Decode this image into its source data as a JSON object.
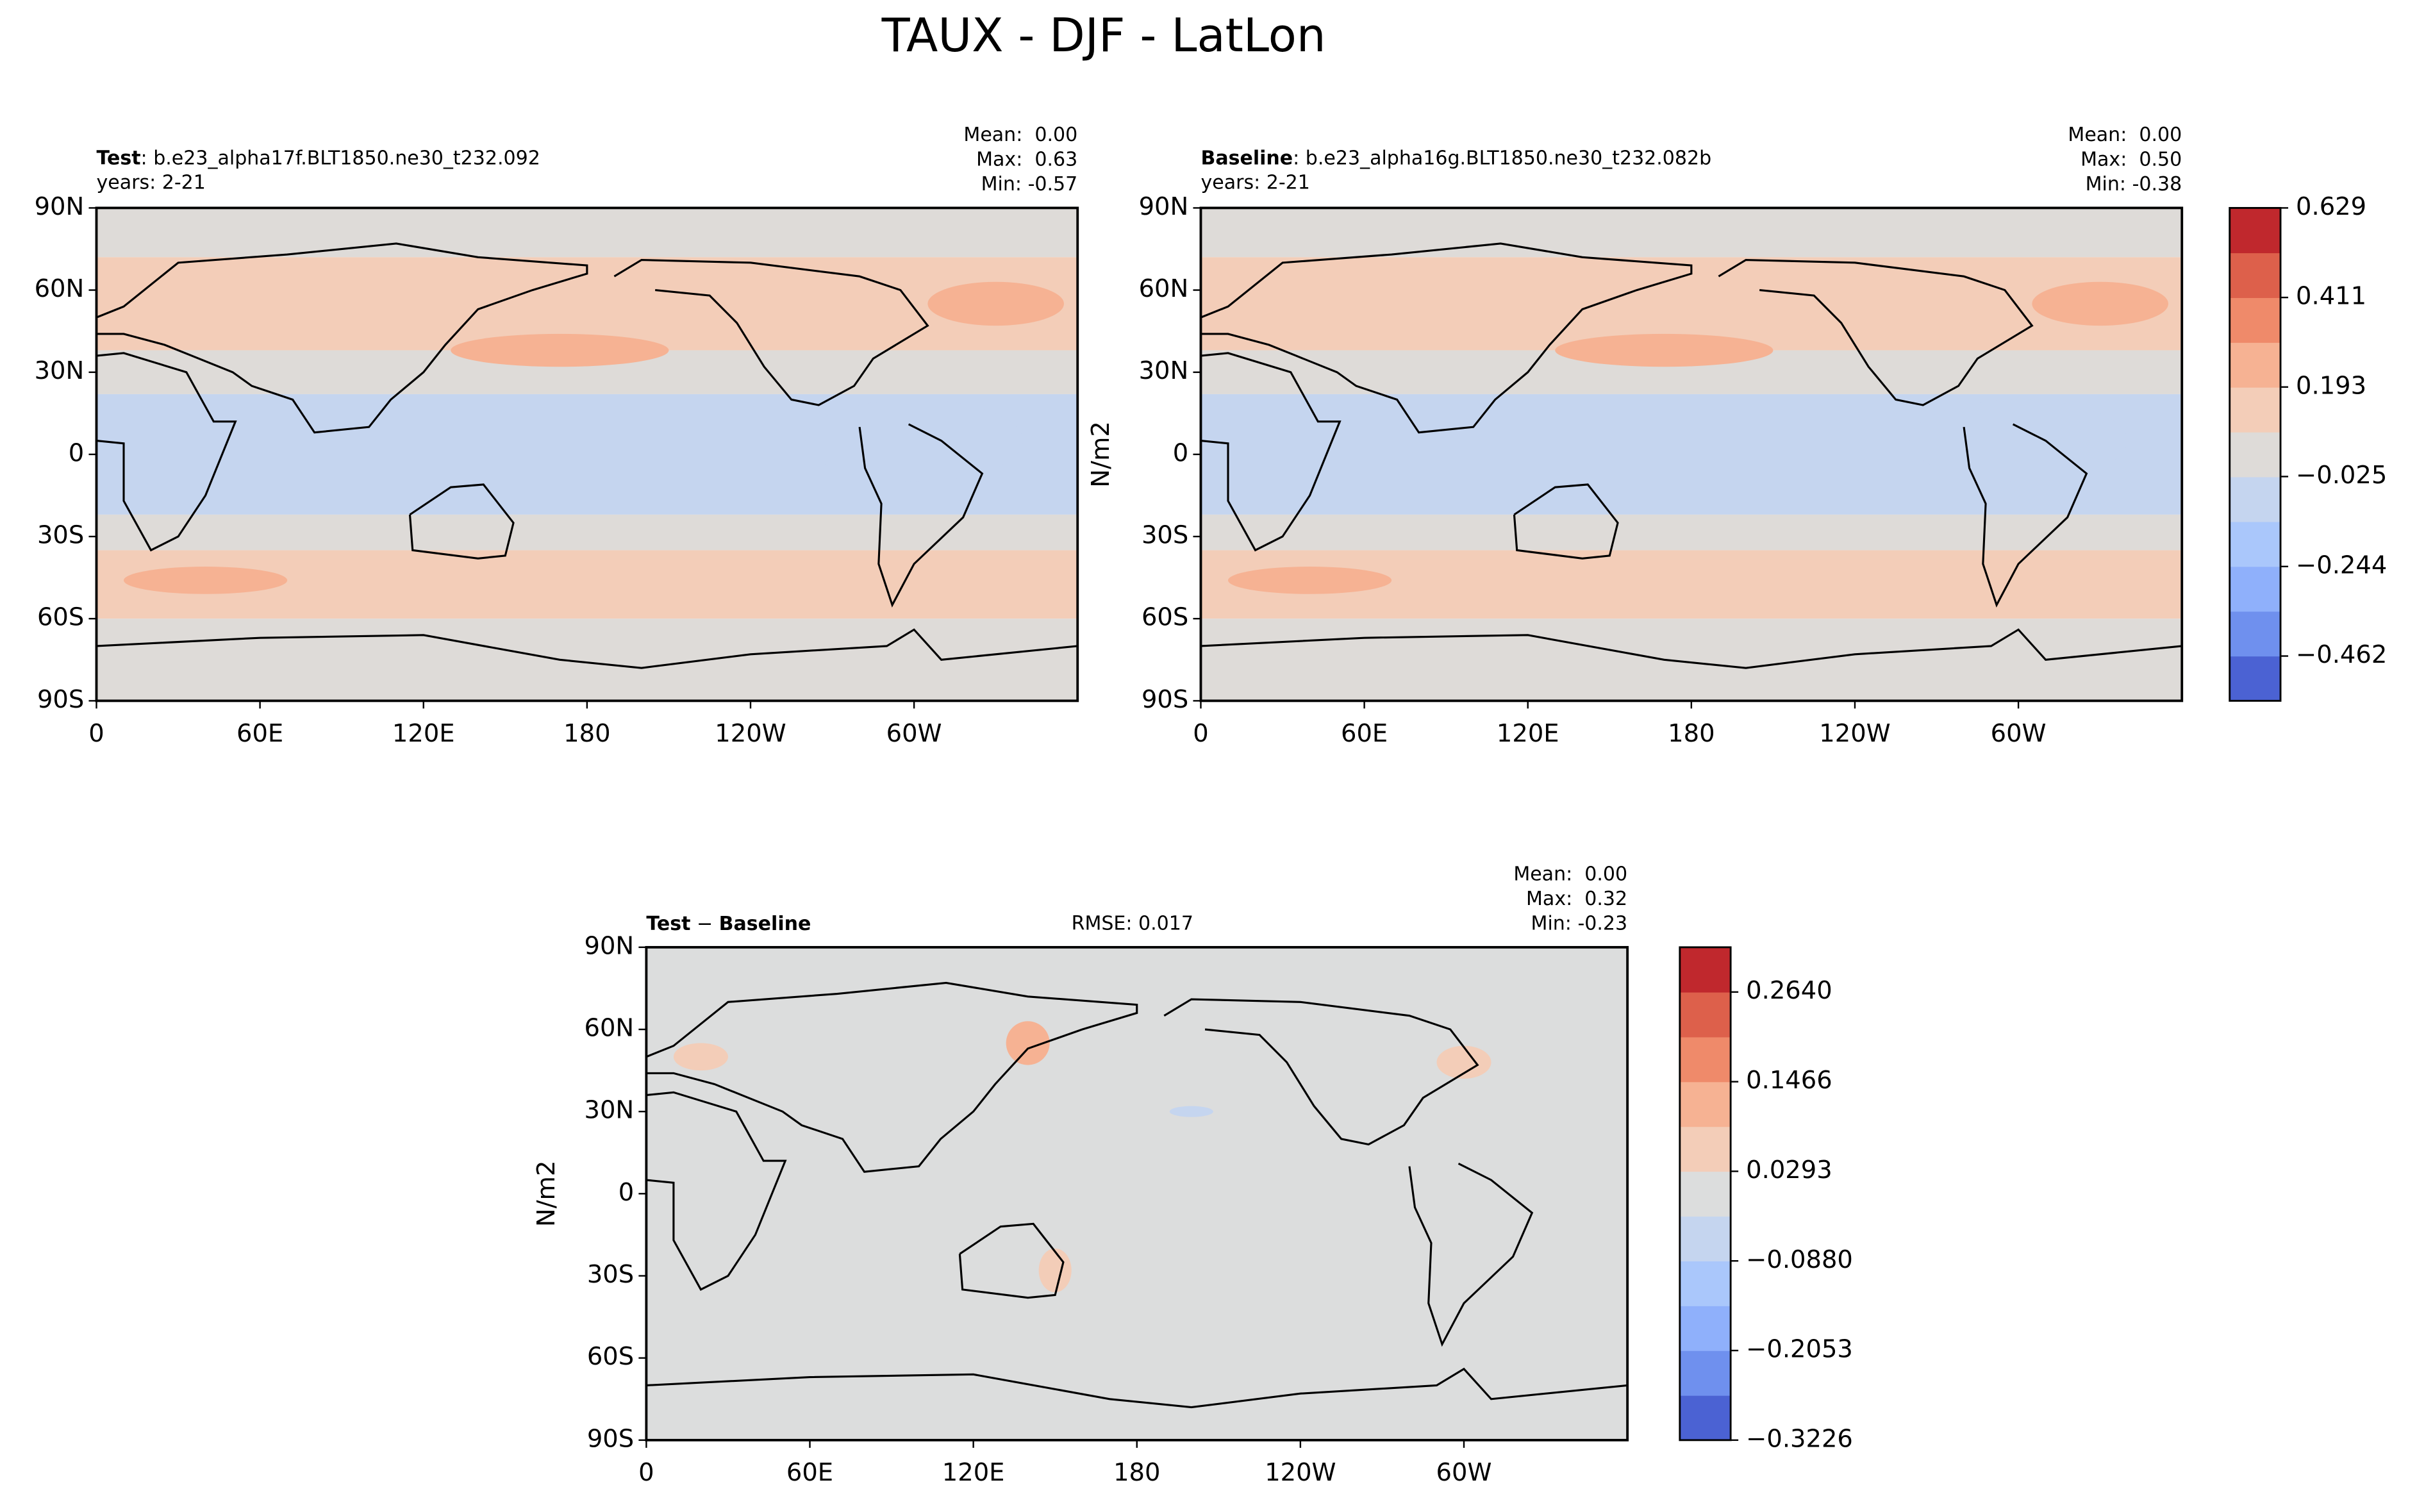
{
  "title": "TAUX - DJF - LatLon",
  "map_axes": {
    "xlim": [
      0,
      360
    ],
    "ylim": [
      -90,
      90
    ],
    "xticks": [
      0,
      {
        "value": 60,
        "label": "60E"
      },
      {
        "value": 120,
        "label": "120E"
      },
      180,
      {
        "value": 240,
        "label": "120W"
      },
      {
        "value": 300,
        "label": "60W"
      }
    ],
    "yticks": [
      {
        "value": 90,
        "label": "90N"
      },
      {
        "value": 60,
        "label": "60N"
      },
      {
        "value": 30,
        "label": "30N"
      },
      0,
      {
        "value": -30,
        "label": "30S"
      },
      {
        "value": -60,
        "label": "60S"
      },
      {
        "value": -90,
        "label": "90S"
      }
    ]
  },
  "panels": [
    {
      "heading": [
        {
          "text": "Test",
          "bold": true
        },
        {
          "text": ": b.e23_alpha17f.BLT1850.ne30_t232.092",
          "bold": false
        }
      ],
      "years": "years: 2-21",
      "stats": [
        "Mean:  0.00",
        "Max:  0.63",
        "Min: -0.57"
      ]
    },
    {
      "heading": [
        {
          "text": "Baseline",
          "bold": true
        },
        {
          "text": ": b.e23_alpha16g.BLT1850.ne30_t232.082b",
          "bold": false
        }
      ],
      "years": "years: 2-21",
      "stats": [
        "Mean:  0.00",
        "Max:  0.50",
        "Min: -0.38"
      ],
      "units": "N/m2"
    },
    {
      "heading": [
        {
          "text": "Test",
          "bold": true
        },
        {
          "text": " − ",
          "bold": false
        },
        {
          "text": "Baseline",
          "bold": true
        }
      ],
      "rmse": "RMSE: 0.017",
      "stats": [
        "Mean:  0.00",
        "Max:  0.32",
        "Min: -0.23"
      ],
      "units": "N/m2"
    }
  ],
  "colorbars": [
    {
      "lim": [
        -0.571,
        0.629
      ],
      "ticks": [
        0.629,
        0.411,
        0.193,
        {
          "value": -0.025,
          "label": "−0.025"
        },
        {
          "value": -0.244,
          "label": "−0.244"
        },
        {
          "value": -0.462,
          "label": "−0.462"
        }
      ],
      "colors": [
        "#4b62d3",
        "#6f90ee",
        "#8fb0fb",
        "#aac7fb",
        "#c5d5ef",
        "#dedbd8",
        "#f3cdb8",
        "#f6b293",
        "#ef8a6a",
        "#dd604b",
        "#c0282d"
      ]
    },
    {
      "lim": [
        -0.3226,
        0.3226
      ],
      "ticks": [
        {
          "value": 0.264,
          "label": "0.2640"
        },
        0.1466,
        0.0293,
        {
          "value": -0.088,
          "label": "−0.0880"
        },
        {
          "value": -0.2053,
          "label": "−0.2053"
        },
        {
          "value": -0.3226,
          "label": "−0.3226"
        }
      ],
      "colors": [
        "#4b62d3",
        "#6f90ee",
        "#8fb0fb",
        "#aac7fb",
        "#c5d5ef",
        "#dcdddd",
        "#f3cdb8",
        "#f6b293",
        "#ef8a6a",
        "#dd604b",
        "#c0282d"
      ]
    }
  ]
}
